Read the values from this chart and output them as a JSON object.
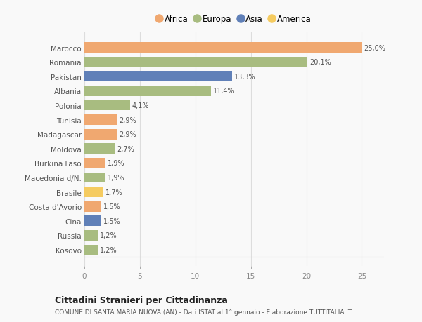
{
  "countries": [
    "Marocco",
    "Romania",
    "Pakistan",
    "Albania",
    "Polonia",
    "Tunisia",
    "Madagascar",
    "Moldova",
    "Burkina Faso",
    "Macedonia d/N.",
    "Brasile",
    "Costa d'Avorio",
    "Cina",
    "Russia",
    "Kosovo"
  ],
  "values": [
    25.0,
    20.1,
    13.3,
    11.4,
    4.1,
    2.9,
    2.9,
    2.7,
    1.9,
    1.9,
    1.7,
    1.5,
    1.5,
    1.2,
    1.2
  ],
  "labels": [
    "25,0%",
    "20,1%",
    "13,3%",
    "11,4%",
    "4,1%",
    "2,9%",
    "2,9%",
    "2,7%",
    "1,9%",
    "1,9%",
    "1,7%",
    "1,5%",
    "1,5%",
    "1,2%",
    "1,2%"
  ],
  "continents": [
    "Africa",
    "Europa",
    "Asia",
    "Europa",
    "Europa",
    "Africa",
    "Africa",
    "Europa",
    "Africa",
    "Europa",
    "America",
    "Africa",
    "Asia",
    "Europa",
    "Europa"
  ],
  "continent_colors": {
    "Africa": "#F0A870",
    "Europa": "#A8BC80",
    "Asia": "#6080B8",
    "America": "#F5CB60"
  },
  "legend_order": [
    "Africa",
    "Europa",
    "Asia",
    "America"
  ],
  "title1": "Cittadini Stranieri per Cittadinanza",
  "title2": "COMUNE DI SANTA MARIA NUOVA (AN) - Dati ISTAT al 1° gennaio - Elaborazione TUTTITALIA.IT",
  "xlim": [
    0,
    27
  ],
  "xticks": [
    0,
    5,
    10,
    15,
    20,
    25
  ],
  "background_color": "#f9f9f9",
  "bar_height": 0.72,
  "grid_color": "#dddddd"
}
